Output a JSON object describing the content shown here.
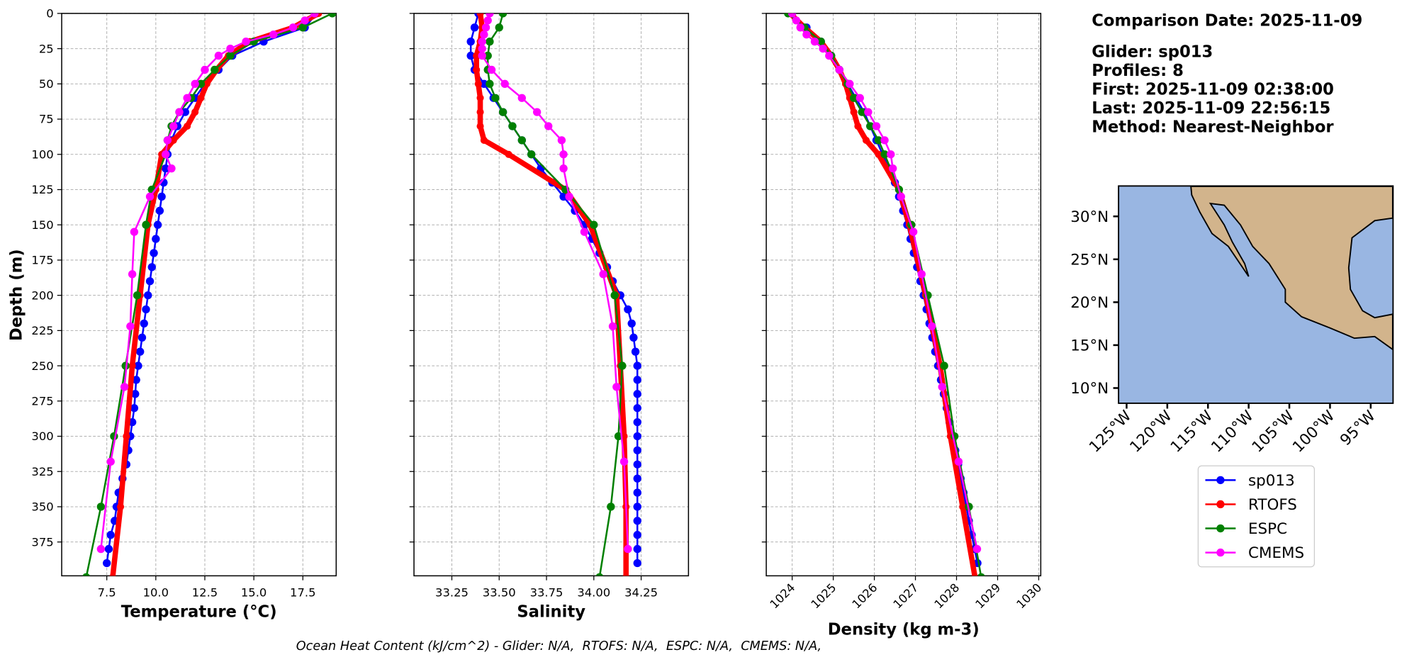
{
  "chart_data": [
    {
      "type": "line",
      "xlabel": "Temperature (°C)",
      "ylabel": "Depth (m)",
      "xlim": [
        5.2,
        19.2
      ],
      "xticks": [
        7.5,
        {
          "value": 10,
          "label": "10.0"
        },
        12.5,
        {
          "value": 15,
          "label": "15.0"
        },
        17.5
      ],
      "ylim": [
        399,
        0
      ],
      "yticks": [
        0,
        25,
        50,
        75,
        100,
        125,
        150,
        175,
        200,
        225,
        250,
        275,
        300,
        325,
        350,
        375
      ],
      "grid": true,
      "series": [
        {
          "name": "sp013",
          "color": "#0000ff",
          "depth": [
            0,
            10,
            20,
            30,
            40,
            50,
            60,
            70,
            80,
            90,
            100,
            110,
            120,
            130,
            140,
            150,
            160,
            170,
            180,
            190,
            200,
            210,
            220,
            230,
            240,
            250,
            260,
            270,
            280,
            290,
            300,
            310,
            320,
            330,
            340,
            350,
            360,
            370,
            380,
            390
          ],
          "values": [
            18.2,
            17.6,
            15.5,
            13.9,
            13.2,
            12.5,
            12.0,
            11.5,
            11.1,
            10.8,
            10.6,
            10.5,
            10.4,
            10.3,
            10.2,
            10.1,
            10.0,
            9.9,
            9.8,
            9.7,
            9.6,
            9.5,
            9.4,
            9.3,
            9.2,
            9.1,
            9.0,
            8.95,
            8.9,
            8.8,
            8.7,
            8.6,
            8.5,
            8.3,
            8.1,
            8.0,
            7.9,
            7.7,
            7.6,
            7.5
          ]
        },
        {
          "name": "RTOFS",
          "color": "#ff0000",
          "depth": [
            0,
            10,
            20,
            30,
            40,
            50,
            60,
            70,
            80,
            90,
            100,
            125,
            150,
            200,
            250,
            300,
            350,
            400
          ],
          "values": [
            18.3,
            17.0,
            14.8,
            13.7,
            13.1,
            12.6,
            12.3,
            12.0,
            11.6,
            10.9,
            10.3,
            10.0,
            9.6,
            9.2,
            8.8,
            8.5,
            8.2,
            7.8
          ]
        },
        {
          "name": "ESPC",
          "color": "#008000",
          "depth": [
            0,
            10,
            20,
            30,
            40,
            50,
            60,
            70,
            80,
            90,
            100,
            125,
            150,
            200,
            250,
            300,
            350,
            400
          ],
          "values": [
            19.0,
            17.5,
            15.0,
            13.8,
            13.0,
            12.3,
            11.8,
            11.2,
            10.8,
            10.6,
            10.5,
            9.8,
            9.5,
            9.05,
            8.46,
            7.87,
            7.2,
            6.45
          ]
        },
        {
          "name": "CMEMS",
          "color": "#ff00ff",
          "depth": [
            0,
            5,
            10,
            15,
            20,
            25,
            30,
            40,
            50,
            60,
            70,
            80,
            90,
            100,
            110,
            130,
            155,
            185,
            222,
            265,
            318,
            380
          ],
          "values": [
            18.1,
            17.6,
            17.0,
            16.0,
            14.6,
            13.8,
            13.2,
            12.5,
            12.0,
            11.6,
            11.2,
            10.9,
            10.6,
            10.5,
            10.8,
            9.7,
            8.9,
            8.8,
            8.7,
            8.4,
            7.7,
            7.2
          ]
        }
      ]
    },
    {
      "type": "line",
      "xlabel": "Salinity",
      "xlim": [
        33.05,
        34.5
      ],
      "xticks": [
        33.25,
        {
          "value": 33.5,
          "label": "33.50"
        },
        33.75,
        {
          "value": 34,
          "label": "34.00"
        },
        34.25
      ],
      "ylim": [
        399,
        0
      ],
      "yticks": [
        0,
        25,
        50,
        75,
        100,
        125,
        150,
        175,
        200,
        225,
        250,
        275,
        300,
        325,
        350,
        375
      ],
      "grid": true,
      "series": [
        {
          "name": "sp013",
          "color": "#0000ff",
          "depth": [
            0,
            10,
            20,
            30,
            40,
            50,
            60,
            70,
            80,
            90,
            100,
            110,
            120,
            130,
            140,
            150,
            160,
            170,
            180,
            190,
            200,
            210,
            220,
            230,
            240,
            250,
            260,
            270,
            280,
            290,
            300,
            310,
            320,
            330,
            340,
            350,
            360,
            370,
            380,
            390
          ],
          "values": [
            33.39,
            33.37,
            33.35,
            33.35,
            33.37,
            33.42,
            33.47,
            33.52,
            33.57,
            33.62,
            33.67,
            33.72,
            33.78,
            33.84,
            33.9,
            33.95,
            33.99,
            34.03,
            34.07,
            34.1,
            34.14,
            34.18,
            34.2,
            34.21,
            34.22,
            34.23,
            34.23,
            34.23,
            34.23,
            34.23,
            34.23,
            34.23,
            34.23,
            34.23,
            34.23,
            34.23,
            34.23,
            34.23,
            34.23,
            34.23
          ]
        },
        {
          "name": "RTOFS",
          "color": "#ff0000",
          "depth": [
            0,
            10,
            20,
            30,
            40,
            50,
            60,
            70,
            80,
            90,
            100,
            125,
            150,
            200,
            250,
            300,
            350,
            400
          ],
          "values": [
            33.4,
            33.41,
            33.4,
            33.38,
            33.38,
            33.39,
            33.4,
            33.4,
            33.4,
            33.42,
            33.55,
            33.85,
            33.98,
            34.12,
            34.14,
            34.16,
            34.17,
            34.17
          ]
        },
        {
          "name": "ESPC",
          "color": "#008000",
          "depth": [
            0,
            10,
            20,
            30,
            40,
            50,
            60,
            70,
            80,
            90,
            100,
            125,
            150,
            200,
            250,
            300,
            350,
            400
          ],
          "values": [
            33.52,
            33.5,
            33.45,
            33.44,
            33.44,
            33.45,
            33.48,
            33.52,
            33.57,
            33.62,
            33.67,
            33.85,
            34.0,
            34.11,
            34.15,
            34.13,
            34.09,
            34.03
          ]
        },
        {
          "name": "CMEMS",
          "color": "#ff00ff",
          "depth": [
            0,
            5,
            10,
            15,
            20,
            25,
            30,
            40,
            50,
            60,
            70,
            80,
            90,
            100,
            110,
            130,
            155,
            185,
            222,
            265,
            318,
            380
          ],
          "values": [
            33.45,
            33.44,
            33.43,
            33.42,
            33.41,
            33.41,
            33.41,
            33.46,
            33.53,
            33.62,
            33.7,
            33.76,
            33.83,
            33.84,
            33.84,
            33.87,
            33.95,
            34.05,
            34.1,
            34.12,
            34.16,
            34.18
          ]
        }
      ]
    },
    {
      "type": "line",
      "xlabel": "Density (kg m-3)",
      "xlim": [
        1023.37,
        1030.05
      ],
      "xticks": [
        1024,
        1025,
        1026,
        1027,
        1028,
        1029,
        1030
      ],
      "ylim": [
        399,
        0
      ],
      "yticks": [
        0,
        25,
        50,
        75,
        100,
        125,
        150,
        175,
        200,
        225,
        250,
        275,
        300,
        325,
        350,
        375
      ],
      "grid": true,
      "series": [
        {
          "name": "sp013",
          "color": "#0000ff",
          "depth": [
            0,
            10,
            20,
            30,
            40,
            50,
            60,
            70,
            80,
            90,
            100,
            110,
            120,
            130,
            140,
            150,
            160,
            170,
            180,
            190,
            200,
            210,
            220,
            230,
            240,
            250,
            260,
            270,
            280,
            290,
            300,
            310,
            320,
            330,
            340,
            350,
            360,
            370,
            380,
            390
          ],
          "values": [
            1024.0,
            1024.35,
            1024.7,
            1024.95,
            1025.15,
            1025.35,
            1025.55,
            1025.75,
            1025.9,
            1026.05,
            1026.2,
            1026.35,
            1026.5,
            1026.6,
            1026.7,
            1026.8,
            1026.88,
            1026.96,
            1027.04,
            1027.12,
            1027.2,
            1027.27,
            1027.34,
            1027.41,
            1027.48,
            1027.55,
            1027.62,
            1027.69,
            1027.76,
            1027.83,
            1027.9,
            1027.97,
            1028.04,
            1028.1,
            1028.17,
            1028.24,
            1028.3,
            1028.37,
            1028.44,
            1028.51
          ]
        },
        {
          "name": "RTOFS",
          "color": "#ff0000",
          "depth": [
            0,
            10,
            20,
            30,
            40,
            50,
            60,
            70,
            80,
            90,
            100,
            125,
            150,
            200,
            250,
            300,
            350,
            400
          ],
          "values": [
            1023.95,
            1024.3,
            1024.7,
            1024.95,
            1025.15,
            1025.3,
            1025.4,
            1025.5,
            1025.6,
            1025.8,
            1026.1,
            1026.6,
            1026.85,
            1027.25,
            1027.6,
            1027.85,
            1028.15,
            1028.45
          ]
        },
        {
          "name": "ESPC",
          "color": "#008000",
          "depth": [
            0,
            10,
            20,
            30,
            40,
            50,
            60,
            70,
            80,
            90,
            100,
            125,
            150,
            200,
            250,
            300,
            350,
            400
          ],
          "values": [
            1023.9,
            1024.3,
            1024.7,
            1024.95,
            1025.15,
            1025.35,
            1025.5,
            1025.7,
            1025.9,
            1026.1,
            1026.25,
            1026.6,
            1026.9,
            1027.3,
            1027.7,
            1027.95,
            1028.3,
            1028.6
          ]
        },
        {
          "name": "CMEMS",
          "color": "#ff00ff",
          "depth": [
            0,
            5,
            10,
            15,
            20,
            25,
            30,
            40,
            50,
            60,
            70,
            80,
            90,
            100,
            110,
            130,
            155,
            185,
            222,
            265,
            318,
            380
          ],
          "values": [
            1024.0,
            1024.1,
            1024.2,
            1024.35,
            1024.55,
            1024.75,
            1024.9,
            1025.15,
            1025.4,
            1025.65,
            1025.85,
            1026.05,
            1026.25,
            1026.4,
            1026.45,
            1026.65,
            1026.95,
            1027.15,
            1027.4,
            1027.65,
            1028.05,
            1028.5
          ]
        }
      ]
    }
  ],
  "info": [
    "Comparison Date: 2025-11-09",
    "Glider: sp013",
    "Profiles: 8",
    "First: 2025-11-09 02:38:00",
    "Last: 2025-11-09 22:56:15",
    "Method: Nearest-Neighbor"
  ],
  "map": {
    "lat_labels": [
      "30°N",
      "25°N",
      "20°N",
      "15°N",
      "10°N"
    ],
    "lon_labels": [
      "125°W",
      "120°W",
      "115°W",
      "110°W",
      "105°W",
      "100°W",
      "95°W"
    ]
  },
  "footer": "Ocean Heat Content (kJ/cm^2) - Glider: N/A,  RTOFS: N/A,  ESPC: N/A,  CMEMS: N/A,"
}
